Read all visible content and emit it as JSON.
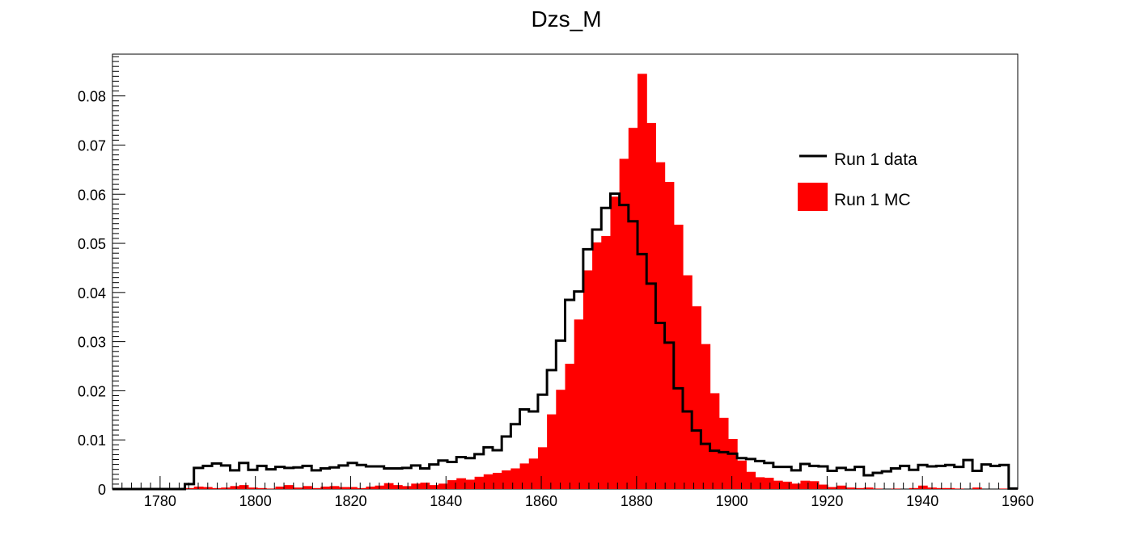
{
  "chart_data": {
    "type": "bar",
    "title": "Dzs_M",
    "xlabel": "",
    "ylabel": "",
    "xlim": [
      1770,
      1960
    ],
    "ylim": [
      0,
      0.0885
    ],
    "bin_width": 1.9,
    "x_ticks": [
      1780,
      1800,
      1820,
      1840,
      1860,
      1880,
      1900,
      1920,
      1940,
      1960
    ],
    "x_tick_labels": [
      "1780",
      "1800",
      "1820",
      "1840",
      "1860",
      "1880",
      "1900",
      "1920",
      "1940",
      "1960"
    ],
    "y_ticks": [
      0,
      0.01,
      0.02,
      0.03,
      0.04,
      0.05,
      0.06,
      0.07,
      0.08
    ],
    "y_tick_labels": [
      "0",
      "0.01",
      "0.02",
      "0.03",
      "0.04",
      "0.05",
      "0.06",
      "0.07",
      "0.08"
    ],
    "grid": false,
    "legend_position": "top-right",
    "series": [
      {
        "name": "Run 1 MC",
        "style": "filled-histogram",
        "color": "#ff0000",
        "values": [
          0,
          0,
          0,
          0,
          0,
          0,
          0,
          0.0001,
          0.0002,
          0.0005,
          0.0004,
          0.0002,
          0.0003,
          0.0006,
          0.0008,
          0.0003,
          0.0002,
          0.0001,
          0.0005,
          0.0008,
          0.0003,
          0.0006,
          0.0002,
          0.0005,
          0.0006,
          0.0004,
          0.0004,
          0.0002,
          0.0005,
          0.0007,
          0.0012,
          0.0008,
          0.0006,
          0.0011,
          0.0013,
          0.0008,
          0.0011,
          0.0018,
          0.0022,
          0.0019,
          0.0025,
          0.003,
          0.0033,
          0.0038,
          0.0042,
          0.0052,
          0.0062,
          0.0085,
          0.0152,
          0.0202,
          0.0255,
          0.0345,
          0.0445,
          0.0502,
          0.0515,
          0.0595,
          0.0672,
          0.0735,
          0.0845,
          0.0745,
          0.0665,
          0.0625,
          0.0538,
          0.0435,
          0.0372,
          0.0295,
          0.0195,
          0.0145,
          0.0102,
          0.0058,
          0.0035,
          0.0024,
          0.0023,
          0.0017,
          0.0015,
          0.0011,
          0.0017,
          0.0016,
          0.0009,
          0.0004,
          0.0007,
          0.0003,
          0.0002,
          0.0003,
          0.0001,
          0,
          0.0001,
          0,
          0.0002,
          0.0007,
          0.0003,
          0.0002,
          0.0002,
          0.0001,
          0,
          0.0003,
          0,
          0,
          0.0001,
          0.0001
        ]
      },
      {
        "name": "Run 1 data",
        "style": "step-line",
        "color": "#000000",
        "values": [
          0,
          0,
          0,
          0,
          0,
          0,
          0,
          0,
          0.001,
          0.0043,
          0.0047,
          0.0052,
          0.0048,
          0.0038,
          0.0053,
          0.0039,
          0.0047,
          0.004,
          0.0045,
          0.0043,
          0.0044,
          0.0047,
          0.0038,
          0.0042,
          0.0044,
          0.0048,
          0.0053,
          0.0049,
          0.0046,
          0.0046,
          0.0042,
          0.0042,
          0.0043,
          0.0048,
          0.0042,
          0.005,
          0.0058,
          0.0055,
          0.0065,
          0.0063,
          0.0071,
          0.0085,
          0.0079,
          0.0107,
          0.0132,
          0.0162,
          0.0158,
          0.0192,
          0.0242,
          0.0302,
          0.0385,
          0.0402,
          0.0488,
          0.0528,
          0.0572,
          0.0601,
          0.0578,
          0.0545,
          0.0478,
          0.0418,
          0.0338,
          0.0298,
          0.0205,
          0.0158,
          0.0119,
          0.0092,
          0.0078,
          0.0075,
          0.0072,
          0.0063,
          0.0061,
          0.0057,
          0.0053,
          0.0045,
          0.0045,
          0.0038,
          0.0051,
          0.0047,
          0.0046,
          0.0037,
          0.0043,
          0.0039,
          0.0045,
          0.0028,
          0.0033,
          0.0036,
          0.0042,
          0.0047,
          0.0039,
          0.0049,
          0.0046,
          0.0047,
          0.0049,
          0.0045,
          0.0059,
          0.0037,
          0.005,
          0.0047,
          0.0049,
          0.0001
        ]
      }
    ]
  }
}
